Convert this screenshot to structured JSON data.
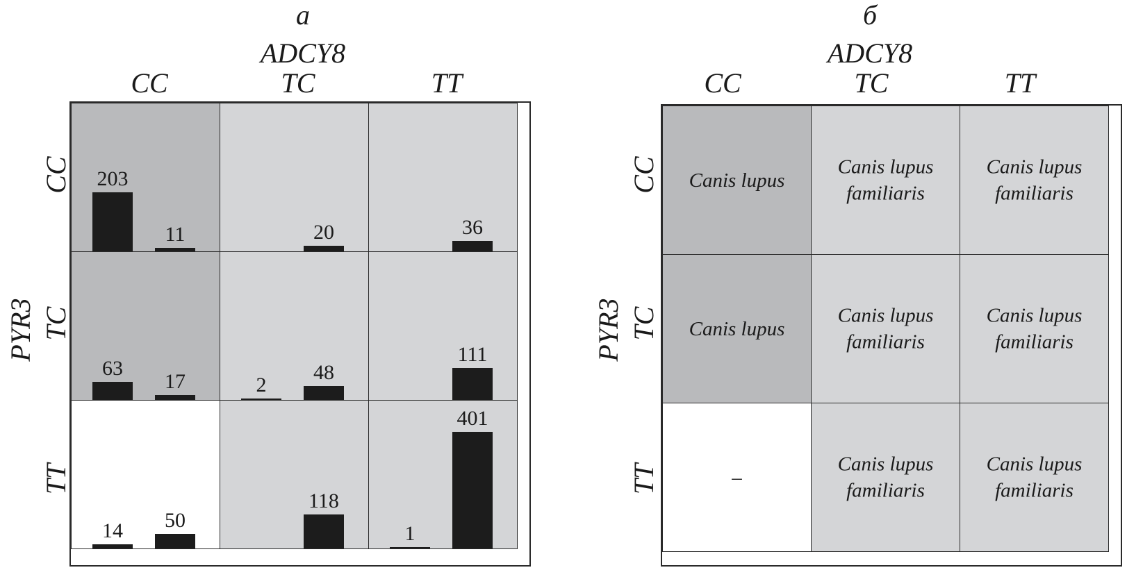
{
  "colors": {
    "dark_cell": "#b9babc",
    "light_cell": "#d4d5d7",
    "empty_cell": "#ffffff",
    "bar": "#1c1c1c",
    "border": "#2a2a2a"
  },
  "chart_data": [
    {
      "type": "bar",
      "panel_label": "а",
      "col_gene": "ADCY8",
      "row_gene": "PYR3",
      "col_genotypes": [
        "CC",
        "TC",
        "TT"
      ],
      "row_genotypes": [
        "CC",
        "TC",
        "TT"
      ],
      "ymax": 401,
      "cells": [
        {
          "row": "CC",
          "col": "CC",
          "shade": "dark",
          "bars": [
            {
              "slot": 0,
              "value": 203,
              "label": "203"
            },
            {
              "slot": 1,
              "value": 11,
              "label": "11"
            }
          ]
        },
        {
          "row": "CC",
          "col": "TC",
          "shade": "light",
          "bars": [
            {
              "slot": 1,
              "value": 20,
              "label": "20"
            }
          ]
        },
        {
          "row": "CC",
          "col": "TT",
          "shade": "light",
          "bars": [
            {
              "slot": 1,
              "value": 36,
              "label": "36"
            }
          ]
        },
        {
          "row": "TC",
          "col": "CC",
          "shade": "dark",
          "bars": [
            {
              "slot": 0,
              "value": 63,
              "label": "63"
            },
            {
              "slot": 1,
              "value": 17,
              "label": "17"
            }
          ]
        },
        {
          "row": "TC",
          "col": "TC",
          "shade": "light",
          "bars": [
            {
              "slot": 0,
              "value": 2,
              "label": "2"
            },
            {
              "slot": 1,
              "value": 48,
              "label": "48"
            }
          ]
        },
        {
          "row": "TC",
          "col": "TT",
          "shade": "light",
          "bars": [
            {
              "slot": 1,
              "value": 111,
              "label": "111"
            }
          ]
        },
        {
          "row": "TT",
          "col": "CC",
          "shade": "empty",
          "bars": [
            {
              "slot": 0,
              "value": 14,
              "label": "14"
            },
            {
              "slot": 1,
              "value": 50,
              "label": "50"
            }
          ]
        },
        {
          "row": "TT",
          "col": "TC",
          "shade": "light",
          "bars": [
            {
              "slot": 1,
              "value": 118,
              "label": "118"
            }
          ]
        },
        {
          "row": "TT",
          "col": "TT",
          "shade": "light",
          "bars": [
            {
              "slot": 0,
              "value": 1,
              "label": "1"
            },
            {
              "slot": 1,
              "value": 401,
              "label": "401"
            }
          ]
        }
      ]
    },
    {
      "type": "table",
      "panel_label": "б",
      "col_gene": "ADCY8",
      "row_gene": "PYR3",
      "col_genotypes": [
        "CC",
        "TC",
        "TT"
      ],
      "row_genotypes": [
        "CC",
        "TC",
        "TT"
      ],
      "cells": [
        {
          "row": "CC",
          "col": "CC",
          "shade": "dark",
          "text": "Canis lupus"
        },
        {
          "row": "CC",
          "col": "TC",
          "shade": "light",
          "text": "Canis lupus familiaris"
        },
        {
          "row": "CC",
          "col": "TT",
          "shade": "light",
          "text": "Canis lupus familiaris"
        },
        {
          "row": "TC",
          "col": "CC",
          "shade": "dark",
          "text": "Canis lupus"
        },
        {
          "row": "TC",
          "col": "TC",
          "shade": "light",
          "text": "Canis lupus familiaris"
        },
        {
          "row": "TC",
          "col": "TT",
          "shade": "light",
          "text": "Canis lupus familiaris"
        },
        {
          "row": "TT",
          "col": "CC",
          "shade": "empty",
          "text": "–"
        },
        {
          "row": "TT",
          "col": "TC",
          "shade": "light",
          "text": "Canis lupus familiaris"
        },
        {
          "row": "TT",
          "col": "TT",
          "shade": "light",
          "text": "Canis lupus familiaris"
        }
      ]
    }
  ]
}
